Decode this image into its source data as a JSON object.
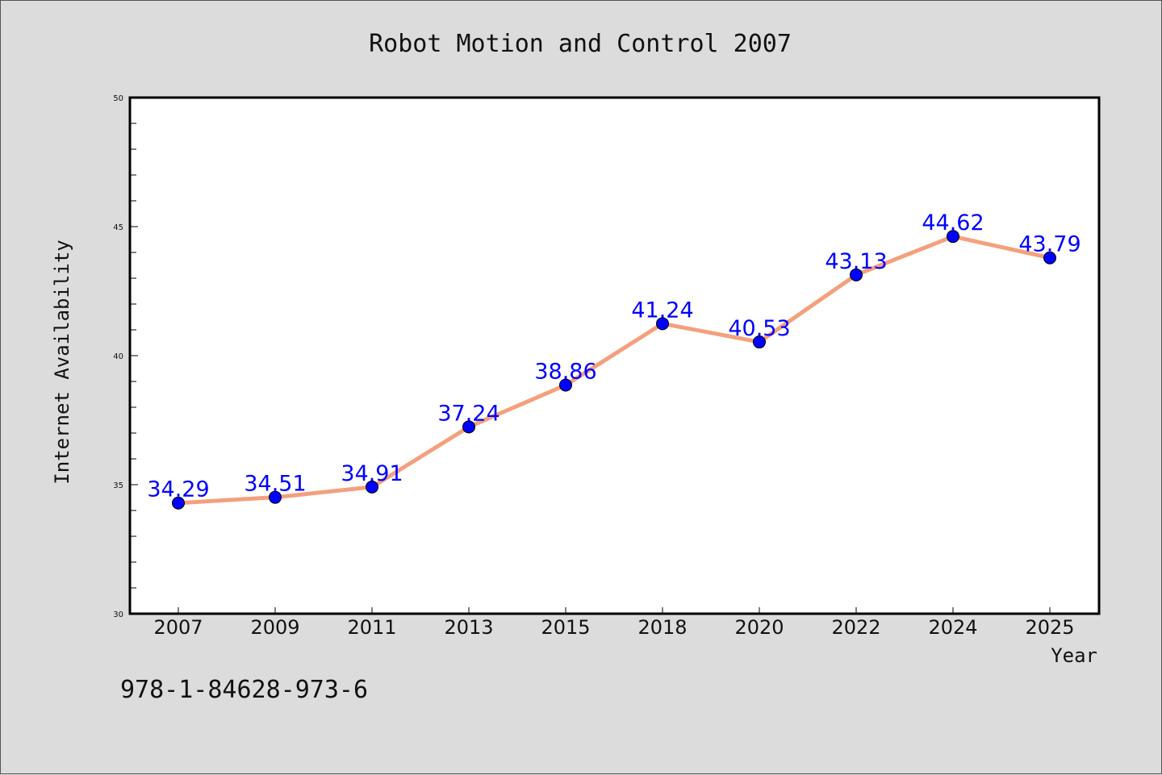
{
  "chart_data": {
    "type": "line",
    "title": "Robot Motion and Control 2007",
    "xlabel": "Year",
    "ylabel": "Internet Availability",
    "categories": [
      "2007",
      "2009",
      "2011",
      "2013",
      "2015",
      "2018",
      "2020",
      "2022",
      "2024",
      "2025"
    ],
    "series": [
      {
        "values": [
          34.29,
          34.51,
          34.91,
          37.24,
          38.86,
          41.24,
          40.53,
          43.13,
          44.62,
          43.79
        ],
        "labels": [
          "34.29",
          "34.51",
          "34.91",
          "37.24",
          "38.86",
          "41.24",
          "40.53",
          "43.13",
          "44.62",
          "43.79"
        ],
        "line_color": "#f4a07e",
        "marker_color": "#0000ff",
        "label_color": "#0000ff"
      }
    ],
    "ylim": [
      30,
      50
    ],
    "yticks": [
      "30",
      "35",
      "40",
      "45",
      "50"
    ],
    "grid": false,
    "legend": "none"
  },
  "footer_text": "978-1-84628-973-6"
}
